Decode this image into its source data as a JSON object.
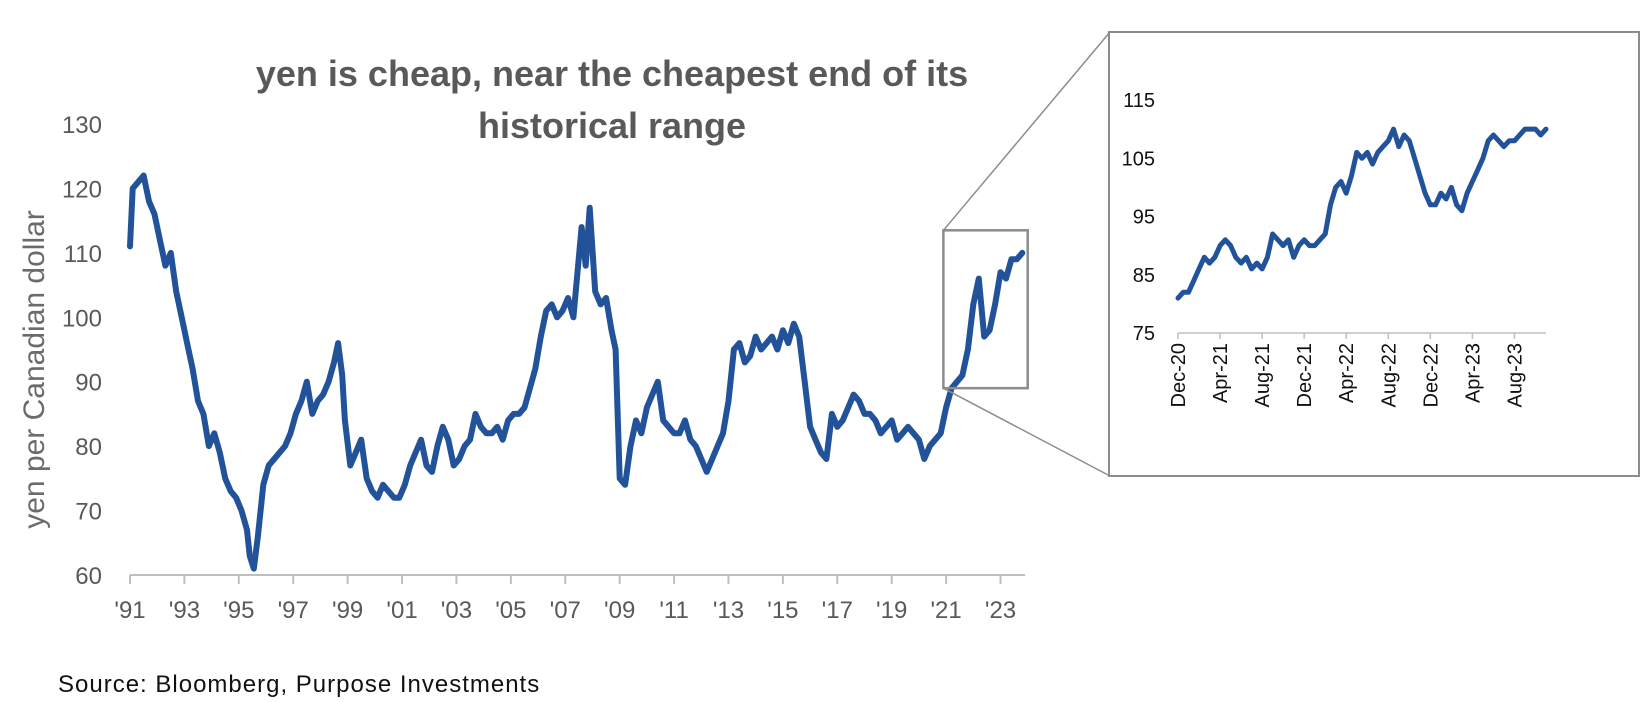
{
  "title_lines": [
    "yen is cheap, near the cheapest end of its",
    "historical range"
  ],
  "source": "Source: Bloomberg, Purpose Investments",
  "colors": {
    "line": "#22539a",
    "text": "#595959",
    "frame": "#8c8c8c",
    "axis": "#bfbfbf"
  },
  "chart_data": [
    {
      "type": "line",
      "title": "yen is cheap, near the cheapest end of its historical range",
      "xlabel": "",
      "ylabel": "yen per Canadian dollar",
      "xlim": [
        1991,
        2023.9
      ],
      "ylim": [
        60,
        130
      ],
      "yticks": [
        60,
        70,
        80,
        90,
        100,
        110,
        120,
        130
      ],
      "xtick_values": [
        1991,
        1993,
        1995,
        1997,
        1999,
        2001,
        2003,
        2005,
        2007,
        2009,
        2011,
        2013,
        2015,
        2017,
        2019,
        2021,
        2023
      ],
      "xtick_labels": [
        "'91",
        "'93",
        "'95",
        "'97",
        "'99",
        "'01",
        "'03",
        "'05",
        "'07",
        "'09",
        "'11",
        "'13",
        "'15",
        "'17",
        "'19",
        "'21",
        "'23"
      ],
      "grid": false,
      "x": [
        1991.0,
        1991.1,
        1991.3,
        1991.5,
        1991.7,
        1991.9,
        1992.1,
        1992.3,
        1992.5,
        1992.7,
        1992.9,
        1993.1,
        1993.3,
        1993.5,
        1993.7,
        1993.9,
        1994.1,
        1994.3,
        1994.5,
        1994.7,
        1994.9,
        1995.1,
        1995.3,
        1995.4,
        1995.55,
        1995.7,
        1995.9,
        1996.1,
        1996.3,
        1996.5,
        1996.7,
        1996.9,
        1997.1,
        1997.3,
        1997.5,
        1997.7,
        1997.9,
        1998.1,
        1998.3,
        1998.5,
        1998.65,
        1998.8,
        1998.9,
        1999.1,
        1999.3,
        1999.5,
        1999.7,
        1999.9,
        2000.1,
        2000.3,
        2000.5,
        2000.7,
        2000.9,
        2001.1,
        2001.3,
        2001.5,
        2001.7,
        2001.9,
        2002.1,
        2002.3,
        2002.5,
        2002.7,
        2002.9,
        2003.1,
        2003.3,
        2003.5,
        2003.7,
        2003.9,
        2004.1,
        2004.3,
        2004.5,
        2004.7,
        2004.9,
        2005.1,
        2005.3,
        2005.5,
        2005.7,
        2005.9,
        2006.1,
        2006.3,
        2006.5,
        2006.7,
        2006.9,
        2007.1,
        2007.3,
        2007.45,
        2007.6,
        2007.75,
        2007.9,
        2008.1,
        2008.3,
        2008.5,
        2008.7,
        2008.85,
        2009.0,
        2009.2,
        2009.4,
        2009.6,
        2009.8,
        2010.0,
        2010.2,
        2010.4,
        2010.6,
        2010.8,
        2011.0,
        2011.2,
        2011.4,
        2011.6,
        2011.8,
        2012.0,
        2012.2,
        2012.4,
        2012.6,
        2012.8,
        2013.0,
        2013.2,
        2013.4,
        2013.6,
        2013.8,
        2014.0,
        2014.2,
        2014.4,
        2014.6,
        2014.8,
        2015.0,
        2015.2,
        2015.4,
        2015.6,
        2015.8,
        2016.0,
        2016.2,
        2016.4,
        2016.6,
        2016.8,
        2017.0,
        2017.2,
        2017.4,
        2017.6,
        2017.8,
        2018.0,
        2018.2,
        2018.4,
        2018.6,
        2018.8,
        2019.0,
        2019.2,
        2019.4,
        2019.6,
        2019.8,
        2020.0,
        2020.2,
        2020.4,
        2020.6,
        2020.8,
        2021.0,
        2021.2,
        2021.4,
        2021.6,
        2021.8,
        2022.0,
        2022.2,
        2022.4,
        2022.6,
        2022.8,
        2023.0,
        2023.2,
        2023.4,
        2023.6,
        2023.8
      ],
      "y": [
        111,
        120,
        121,
        122,
        118,
        116,
        112,
        108,
        110,
        104,
        100,
        96,
        92,
        87,
        85,
        80,
        82,
        79,
        75,
        73,
        72,
        70,
        67,
        63,
        61,
        66,
        74,
        77,
        78,
        79,
        80,
        82,
        85,
        87,
        90,
        85,
        87,
        88,
        90,
        93,
        96,
        91,
        84,
        77,
        79,
        81,
        75,
        73,
        72,
        74,
        73,
        72,
        72,
        74,
        77,
        79,
        81,
        77,
        76,
        80,
        83,
        81,
        77,
        78,
        80,
        81,
        85,
        83,
        82,
        82,
        83,
        81,
        84,
        85,
        85,
        86,
        89,
        92,
        97,
        101,
        102,
        100,
        101,
        103,
        100,
        107,
        114,
        108,
        117,
        104,
        102,
        103,
        98,
        95,
        75,
        74,
        80,
        84,
        82,
        86,
        88,
        90,
        84,
        83,
        82,
        82,
        84,
        81,
        80,
        78,
        76,
        78,
        80,
        82,
        87,
        95,
        96,
        93,
        94,
        97,
        95,
        96,
        97,
        95,
        98,
        96,
        99,
        97,
        90,
        83,
        81,
        79,
        78,
        85,
        83,
        84,
        86,
        88,
        87,
        85,
        85,
        84,
        82,
        83,
        84,
        81,
        82,
        83,
        82,
        81,
        78,
        80,
        81,
        82,
        86,
        89,
        90,
        91,
        95,
        102,
        106,
        97,
        98,
        102,
        107,
        106,
        109,
        109,
        110
      ]
    },
    {
      "type": "line",
      "title": "",
      "xlabel": "",
      "ylabel": "",
      "xlim": [
        0,
        35
      ],
      "ylim": [
        75,
        115
      ],
      "yticks": [
        75,
        85,
        95,
        105,
        115
      ],
      "xtick_values": [
        0,
        4,
        8,
        12,
        16,
        20,
        24,
        28,
        32
      ],
      "xtick_labels": [
        "Dec-20",
        "Apr-21",
        "Aug-21",
        "Dec-21",
        "Apr-22",
        "Aug-22",
        "Dec-22",
        "Apr-23",
        "Aug-23"
      ],
      "grid": false,
      "x": [
        0,
        0.5,
        1,
        1.5,
        2,
        2.5,
        3,
        3.5,
        4,
        4.5,
        5,
        5.5,
        6,
        6.5,
        7,
        7.5,
        8,
        8.5,
        9,
        9.5,
        10,
        10.5,
        11,
        11.5,
        12,
        12.5,
        13,
        13.5,
        14,
        14.5,
        15,
        15.5,
        16,
        16.5,
        17,
        17.5,
        18,
        18.5,
        19,
        19.5,
        20,
        20.5,
        21,
        21.5,
        22,
        22.5,
        23,
        23.5,
        24,
        24.5,
        25,
        25.5,
        26,
        26.5,
        27,
        27.5,
        28,
        28.5,
        29,
        29.5,
        30,
        30.5,
        31,
        31.5,
        32,
        32.5,
        33,
        33.5,
        34,
        34.5,
        35
      ],
      "y": [
        81,
        82,
        82,
        84,
        86,
        88,
        87,
        88,
        90,
        91,
        90,
        88,
        87,
        88,
        86,
        87,
        86,
        88,
        92,
        91,
        90,
        91,
        88,
        90,
        91,
        90,
        90,
        91,
        92,
        97,
        100,
        101,
        99,
        102,
        106,
        105,
        106,
        104,
        106,
        107,
        108,
        110,
        107,
        109,
        108,
        105,
        102,
        99,
        97,
        97,
        99,
        98,
        100,
        97,
        96,
        99,
        101,
        103,
        105,
        108,
        109,
        108,
        107,
        108,
        108,
        109,
        110,
        110,
        110,
        109,
        110
      ]
    }
  ]
}
